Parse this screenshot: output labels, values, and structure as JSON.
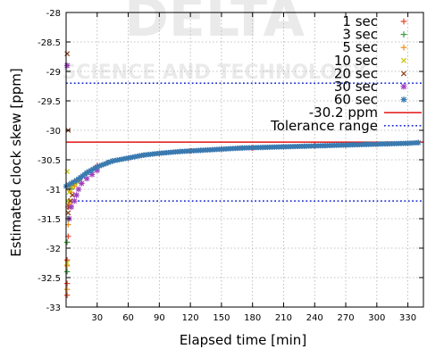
{
  "chart_data": {
    "type": "scatter",
    "title": "",
    "xlabel": "Elapsed time [min]",
    "ylabel": "Estimated clock skew [ppm]",
    "xlim": [
      0,
      345
    ],
    "ylim": [
      -33,
      -28
    ],
    "x_ticks": [
      30,
      60,
      90,
      120,
      150,
      180,
      210,
      240,
      270,
      300,
      330
    ],
    "y_ticks": [
      -28,
      -28.5,
      -29,
      -29.5,
      -30,
      -30.5,
      -31,
      -31.5,
      -32,
      -32.5,
      -33
    ],
    "grid": true,
    "legend_position": "top-right",
    "series": [
      {
        "name": "1 sec",
        "marker": "plus",
        "color": "#e8402a",
        "x": [
          1,
          1,
          1,
          2,
          2,
          3,
          4,
          6,
          8,
          10,
          15,
          20,
          30,
          45,
          60,
          90,
          120,
          150,
          180,
          210,
          240,
          270,
          300,
          330,
          340
        ],
        "y": [
          -32.8,
          -32.6,
          -32.2,
          -31.8,
          -31.3,
          -31.0,
          -30.95,
          -30.9,
          -30.88,
          -30.86,
          -30.8,
          -30.72,
          -30.6,
          -30.52,
          -30.48,
          -30.4,
          -30.35,
          -30.32,
          -30.3,
          -30.28,
          -30.26,
          -30.25,
          -30.23,
          -30.22,
          -30.21
        ]
      },
      {
        "name": "3 sec",
        "marker": "plus",
        "color": "#3a9a3a",
        "x": [
          1,
          1,
          2,
          3,
          5,
          8,
          12,
          20,
          40
        ],
        "y": [
          -32.4,
          -31.9,
          -31.5,
          -31.2,
          -31.0,
          -30.92,
          -30.85,
          -30.72,
          -30.55
        ]
      },
      {
        "name": "5 sec",
        "marker": "plus",
        "color": "#f08c1a",
        "x": [
          1,
          1,
          2,
          3,
          5,
          8
        ],
        "y": [
          -32.7,
          -32.3,
          -31.6,
          -31.25,
          -31.05,
          -30.95
        ]
      },
      {
        "name": "10 sec",
        "marker": "x",
        "color": "#c8c800",
        "x": [
          1,
          1,
          2,
          3,
          5,
          8,
          12
        ],
        "y": [
          -32.25,
          -30.7,
          -31.2,
          -31.05,
          -30.95,
          -30.9,
          -30.88
        ]
      },
      {
        "name": "20 sec",
        "marker": "x",
        "color": "#8c3c14",
        "x": [
          1,
          2,
          2,
          3,
          4,
          6
        ],
        "y": [
          -28.7,
          -30.0,
          -31.4,
          -31.3,
          -31.2,
          -31.1
        ]
      },
      {
        "name": "30 sec",
        "marker": "star",
        "color": "#a040c0",
        "x": [
          1,
          3,
          5,
          8,
          10,
          12,
          15,
          20,
          25,
          30
        ],
        "y": [
          -28.9,
          -31.5,
          -31.3,
          -31.2,
          -31.1,
          -31.0,
          -30.9,
          -30.82,
          -30.75,
          -30.68
        ]
      },
      {
        "name": "60 sec",
        "marker": "star",
        "color": "#3a7ab0",
        "x": [
          0,
          5,
          10,
          20,
          30,
          45,
          60,
          75,
          90,
          110,
          130,
          150,
          170,
          190,
          210,
          230,
          250,
          270,
          290,
          310,
          330,
          340
        ],
        "y": [
          -30.95,
          -30.9,
          -30.85,
          -30.72,
          -30.62,
          -30.52,
          -30.47,
          -30.42,
          -30.39,
          -30.36,
          -30.34,
          -30.32,
          -30.3,
          -30.29,
          -30.28,
          -30.27,
          -30.26,
          -30.25,
          -30.24,
          -30.23,
          -30.22,
          -30.21
        ]
      }
    ],
    "reference_lines": [
      {
        "name": "-30.2 ppm",
        "y": -30.2,
        "color": "#e00000",
        "style": "solid"
      },
      {
        "name": "Tolerance range",
        "y": -29.2,
        "color": "#2030d0",
        "style": "dotted"
      },
      {
        "name": "",
        "y": -31.2,
        "color": "#2030d0",
        "style": "dotted"
      }
    ]
  },
  "watermark": {
    "line1": "DELTA",
    "line2": "SCIENCE AND TECHNOLOGY"
  }
}
